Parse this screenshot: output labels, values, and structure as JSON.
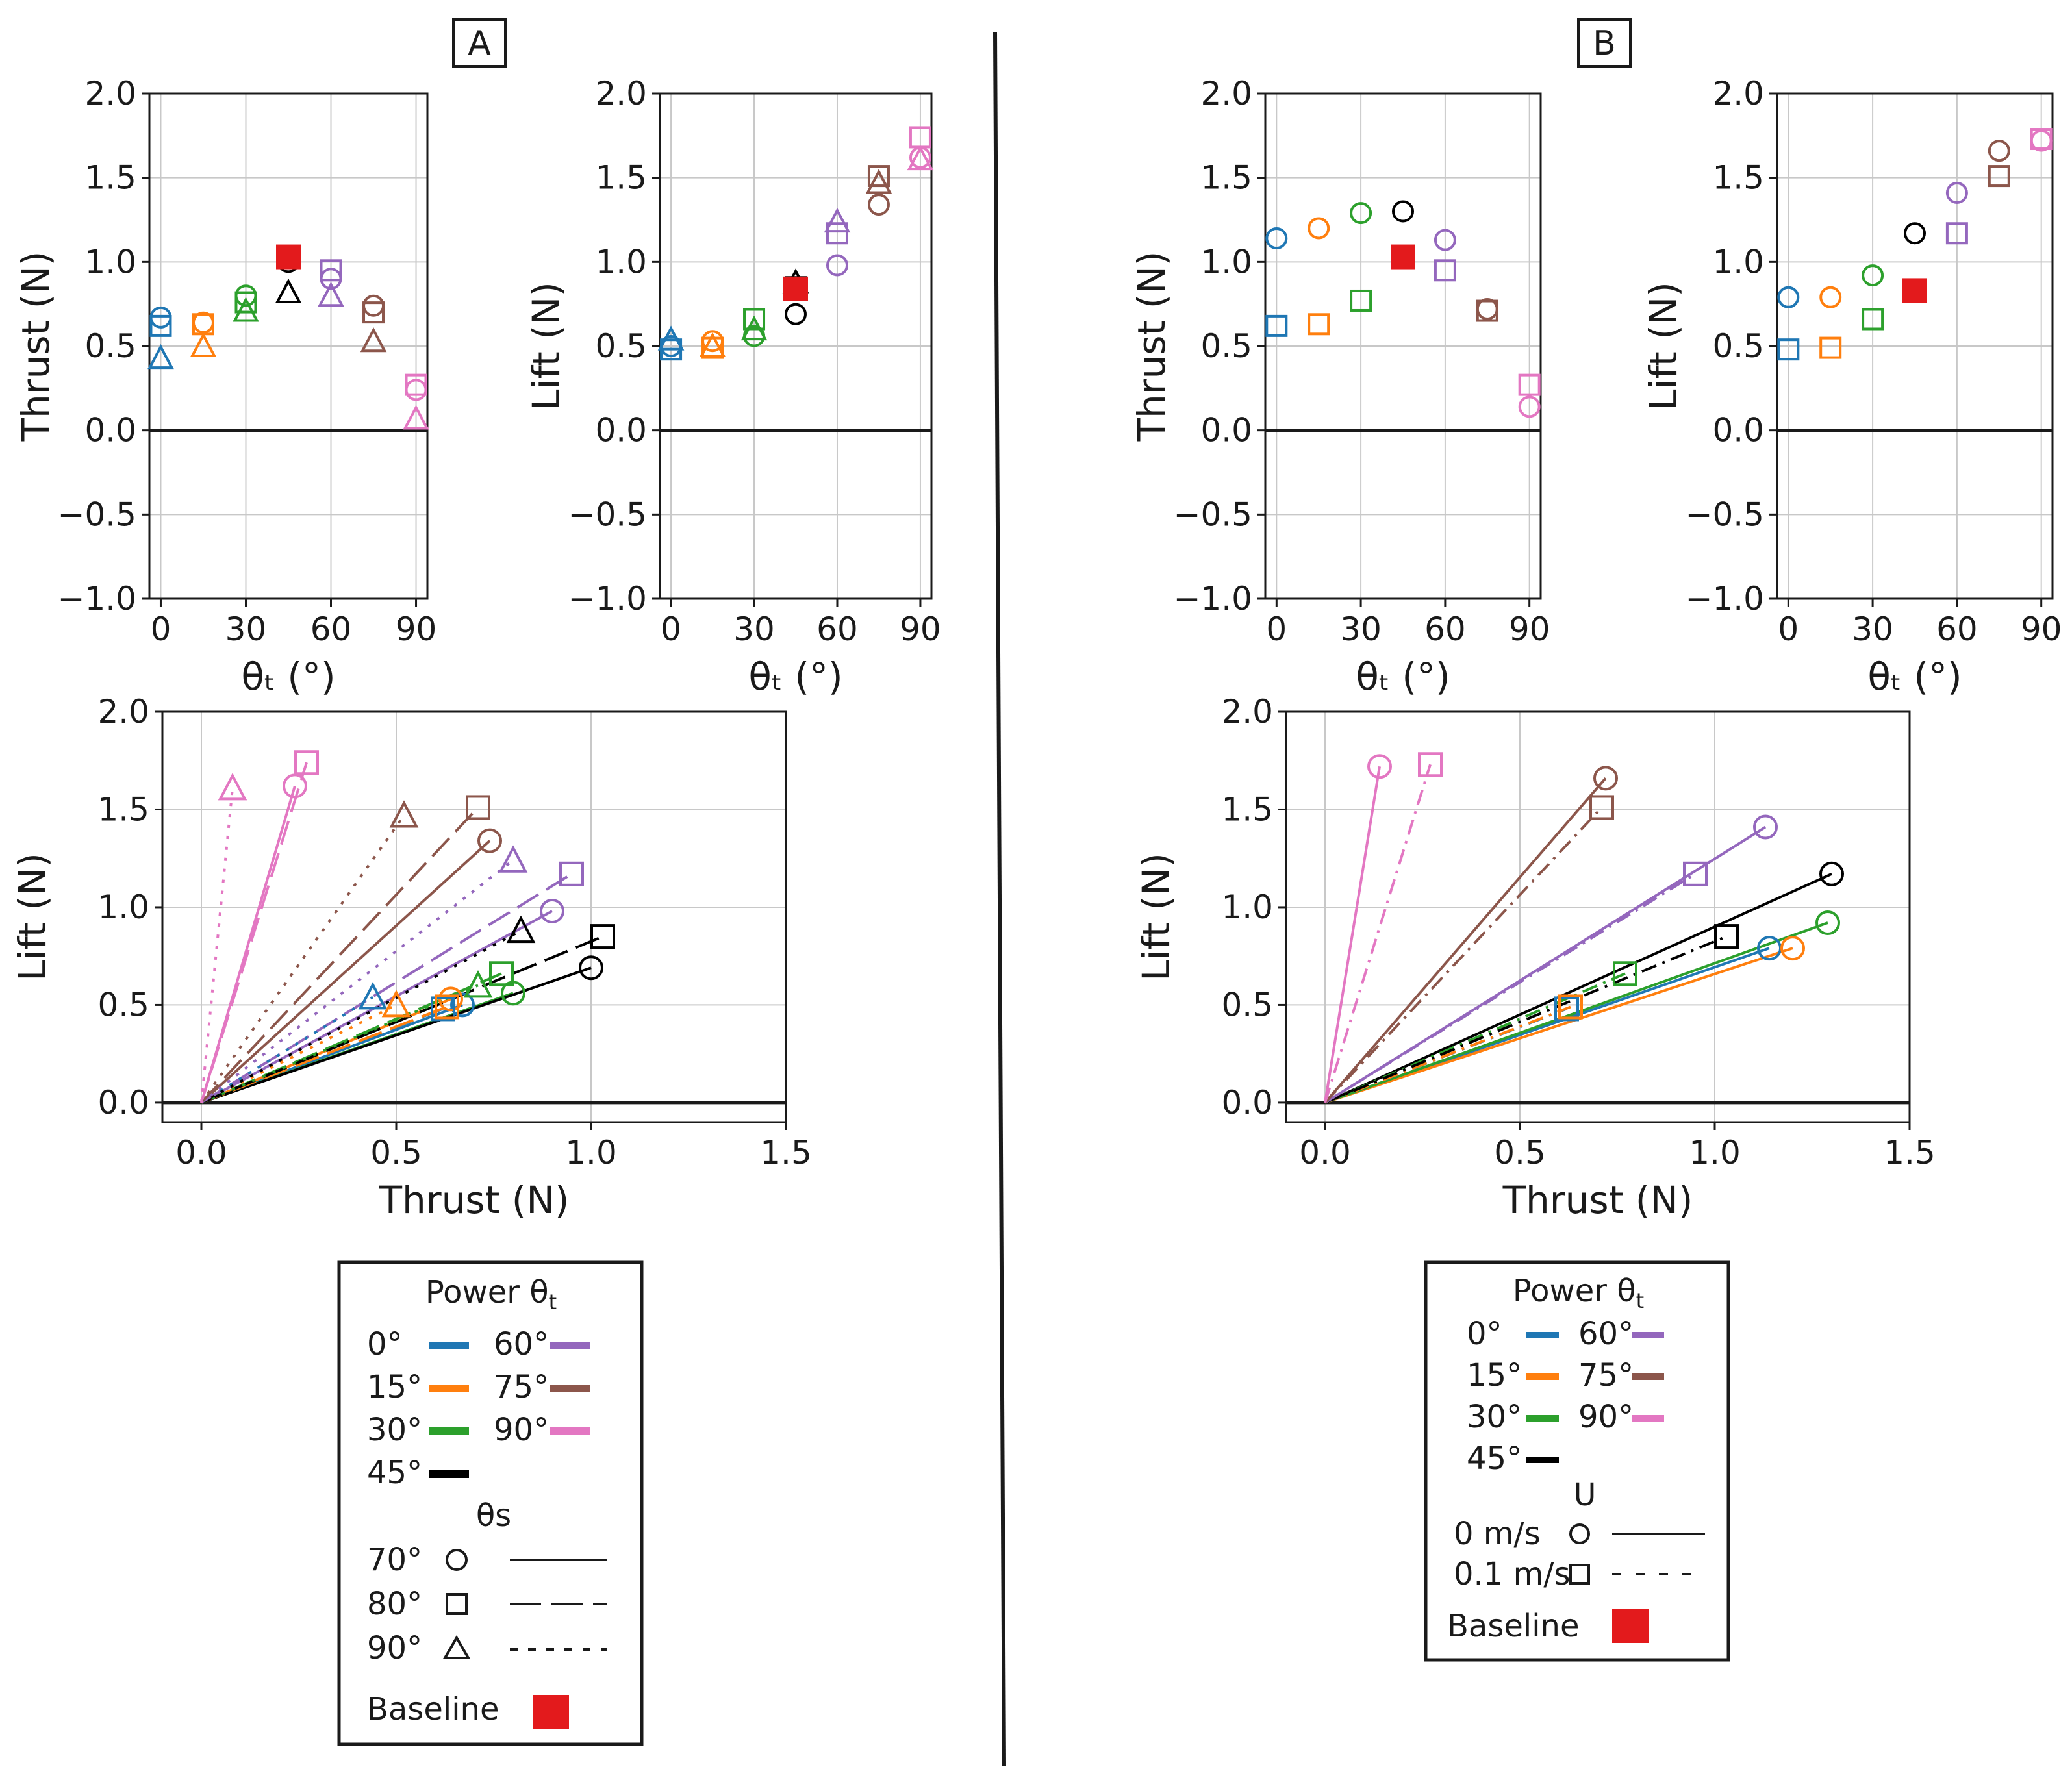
{
  "colors": {
    "p0": "#1f77b4",
    "p15": "#ff7f0e",
    "p30": "#2ca02c",
    "p45": "#000000",
    "p60": "#9467bd",
    "p75": "#8c564b",
    "p90": "#e377c2",
    "baseline": "#e31a1c"
  },
  "panel_labels": {
    "a": "A",
    "b": "B"
  },
  "legend_a": {
    "title": "Power θ",
    "title_sub": "t",
    "powers": [
      {
        "label": "0°",
        "color": "#1f77b4"
      },
      {
        "label": "15°",
        "color": "#ff7f0e"
      },
      {
        "label": "30°",
        "color": "#2ca02c"
      },
      {
        "label": "45°",
        "color": "#000000"
      },
      {
        "label": "60°",
        "color": "#9467bd"
      },
      {
        "label": "75°",
        "color": "#8c564b"
      },
      {
        "label": "90°",
        "color": "#e377c2"
      }
    ],
    "section2_title": "θs",
    "styles": [
      {
        "label": "70°",
        "marker": "circle",
        "line": "solid"
      },
      {
        "label": "80°",
        "marker": "square",
        "line": "dashed"
      },
      {
        "label": "90°",
        "marker": "triangle",
        "line": "dotted"
      }
    ],
    "baseline_label": "Baseline"
  },
  "legend_b": {
    "title": "Power θ",
    "title_sub": "t",
    "powers": [
      {
        "label": "0°",
        "color": "#1f77b4"
      },
      {
        "label": "15°",
        "color": "#ff7f0e"
      },
      {
        "label": "30°",
        "color": "#2ca02c"
      },
      {
        "label": "45°",
        "color": "#000000"
      },
      {
        "label": "60°",
        "color": "#9467bd"
      },
      {
        "label": "75°",
        "color": "#8c564b"
      },
      {
        "label": "90°",
        "color": "#e377c2"
      }
    ],
    "section2_title": "U",
    "styles": [
      {
        "label": "0 m/s",
        "marker": "circle",
        "line": "solid"
      },
      {
        "label": "0.1 m/s",
        "marker": "square",
        "line": "dashdot"
      }
    ],
    "baseline_label": "Baseline"
  },
  "chart_data": [
    {
      "id": "A-thrust",
      "panel": "A",
      "type": "scatter",
      "xlabel": "θₜ (°)",
      "ylabel": "Thrust (N)",
      "xlim": [
        -4,
        94
      ],
      "ylim": [
        -1.0,
        2.0
      ],
      "xticks": [
        0,
        30,
        60,
        90
      ],
      "yticks": [
        -1.0,
        -0.5,
        0.0,
        0.5,
        1.0,
        1.5,
        2.0
      ],
      "series": [
        {
          "name": "θs 70°",
          "marker": "circle",
          "points": [
            [
              0,
              0.67,
              "p0"
            ],
            [
              15,
              0.64,
              "p15"
            ],
            [
              30,
              0.8,
              "p30"
            ],
            [
              45,
              1.0,
              "p45"
            ],
            [
              60,
              0.9,
              "p60"
            ],
            [
              75,
              0.74,
              "p75"
            ],
            [
              90,
              0.24,
              "p90"
            ]
          ]
        },
        {
          "name": "θs 80°",
          "marker": "square",
          "points": [
            [
              0,
              0.62,
              "p0"
            ],
            [
              15,
              0.63,
              "p15"
            ],
            [
              30,
              0.76,
              "p30"
            ],
            [
              60,
              0.95,
              "p60"
            ],
            [
              75,
              0.7,
              "p75"
            ],
            [
              90,
              0.27,
              "p90"
            ]
          ]
        },
        {
          "name": "θs 90°",
          "marker": "triangle",
          "points": [
            [
              0,
              0.43,
              "p0"
            ],
            [
              15,
              0.5,
              "p15"
            ],
            [
              30,
              0.71,
              "p30"
            ],
            [
              45,
              0.82,
              "p45"
            ],
            [
              60,
              0.8,
              "p60"
            ],
            [
              75,
              0.53,
              "p75"
            ],
            [
              90,
              0.07,
              "p90"
            ]
          ]
        },
        {
          "name": "Baseline",
          "marker": "filled-square",
          "points": [
            [
              45,
              1.03,
              "baseline"
            ]
          ]
        }
      ]
    },
    {
      "id": "A-lift",
      "panel": "A",
      "type": "scatter",
      "xlabel": "θₜ (°)",
      "ylabel": "Lift (N)",
      "xlim": [
        -4,
        94
      ],
      "ylim": [
        -1.0,
        2.0
      ],
      "xticks": [
        0,
        30,
        60,
        90
      ],
      "yticks": [
        -1.0,
        -0.5,
        0.0,
        0.5,
        1.0,
        1.5,
        2.0
      ],
      "series": [
        {
          "name": "θs 70°",
          "marker": "circle",
          "points": [
            [
              0,
              0.5,
              "p0"
            ],
            [
              15,
              0.53,
              "p15"
            ],
            [
              30,
              0.56,
              "p30"
            ],
            [
              45,
              0.69,
              "p45"
            ],
            [
              60,
              0.98,
              "p60"
            ],
            [
              75,
              1.34,
              "p75"
            ],
            [
              90,
              1.62,
              "p90"
            ]
          ]
        },
        {
          "name": "θs 80°",
          "marker": "square",
          "points": [
            [
              0,
              0.48,
              "p0"
            ],
            [
              15,
              0.49,
              "p15"
            ],
            [
              30,
              0.66,
              "p30"
            ],
            [
              45,
              0.85,
              "p45"
            ],
            [
              60,
              1.17,
              "p60"
            ],
            [
              75,
              1.51,
              "p75"
            ],
            [
              90,
              1.74,
              "p90"
            ]
          ]
        },
        {
          "name": "θs 90°",
          "marker": "triangle",
          "points": [
            [
              0,
              0.54,
              "p0"
            ],
            [
              15,
              0.5,
              "p15"
            ],
            [
              30,
              0.6,
              "p30"
            ],
            [
              45,
              0.88,
              "p45"
            ],
            [
              60,
              1.24,
              "p60"
            ],
            [
              75,
              1.47,
              "p75"
            ],
            [
              90,
              1.61,
              "p90"
            ]
          ]
        },
        {
          "name": "Baseline",
          "marker": "filled-square",
          "points": [
            [
              45,
              0.84,
              "baseline"
            ]
          ]
        }
      ]
    },
    {
      "id": "A-lift-vs-thrust",
      "panel": "A",
      "type": "line",
      "xlabel": "Thrust (N)",
      "ylabel": "Lift (N)",
      "xlim": [
        -0.1,
        1.5
      ],
      "ylim": [
        -0.1,
        2.0
      ],
      "xticks": [
        0.0,
        0.5,
        1.0,
        1.5
      ],
      "yticks": [
        0.0,
        0.5,
        1.0,
        1.5,
        2.0
      ],
      "series": [
        {
          "name": "70°",
          "marker": "circle",
          "line": "solid",
          "points": [
            [
              0.67,
              0.5,
              "p0"
            ],
            [
              0.64,
              0.53,
              "p15"
            ],
            [
              0.8,
              0.56,
              "p30"
            ],
            [
              1.0,
              0.69,
              "p45"
            ],
            [
              0.9,
              0.98,
              "p60"
            ],
            [
              0.74,
              1.34,
              "p75"
            ],
            [
              0.24,
              1.62,
              "p90"
            ]
          ]
        },
        {
          "name": "80°",
          "marker": "square",
          "line": "dashed",
          "points": [
            [
              0.62,
              0.48,
              "p0"
            ],
            [
              0.63,
              0.49,
              "p15"
            ],
            [
              0.77,
              0.66,
              "p30"
            ],
            [
              1.03,
              0.85,
              "p45"
            ],
            [
              0.95,
              1.17,
              "p60"
            ],
            [
              0.71,
              1.51,
              "p75"
            ],
            [
              0.27,
              1.74,
              "p90"
            ]
          ]
        },
        {
          "name": "90°",
          "marker": "triangle",
          "line": "dotted",
          "points": [
            [
              0.44,
              0.54,
              "p0"
            ],
            [
              0.5,
              0.5,
              "p15"
            ],
            [
              0.71,
              0.6,
              "p30"
            ],
            [
              0.82,
              0.88,
              "p45"
            ],
            [
              0.8,
              1.24,
              "p60"
            ],
            [
              0.52,
              1.47,
              "p75"
            ],
            [
              0.08,
              1.61,
              "p90"
            ]
          ]
        }
      ]
    },
    {
      "id": "B-thrust",
      "panel": "B",
      "type": "scatter",
      "xlabel": "θₜ (°)",
      "ylabel": "Thrust (N)",
      "xlim": [
        -4,
        94
      ],
      "ylim": [
        -1.0,
        2.0
      ],
      "xticks": [
        0,
        30,
        60,
        90
      ],
      "yticks": [
        -1.0,
        -0.5,
        0.0,
        0.5,
        1.0,
        1.5,
        2.0
      ],
      "series": [
        {
          "name": "U 0 m/s",
          "marker": "circle",
          "points": [
            [
              0,
              1.14,
              "p0"
            ],
            [
              15,
              1.2,
              "p15"
            ],
            [
              30,
              1.29,
              "p30"
            ],
            [
              45,
              1.3,
              "p45"
            ],
            [
              60,
              1.13,
              "p60"
            ],
            [
              75,
              0.72,
              "p75"
            ],
            [
              90,
              0.14,
              "p90"
            ]
          ]
        },
        {
          "name": "U 0.1 m/s",
          "marker": "square",
          "points": [
            [
              0,
              0.62,
              "p0"
            ],
            [
              15,
              0.63,
              "p15"
            ],
            [
              30,
              0.77,
              "p30"
            ],
            [
              60,
              0.95,
              "p60"
            ],
            [
              75,
              0.71,
              "p75"
            ],
            [
              90,
              0.27,
              "p90"
            ]
          ]
        },
        {
          "name": "Baseline",
          "marker": "filled-square",
          "points": [
            [
              45,
              1.03,
              "baseline"
            ]
          ]
        }
      ]
    },
    {
      "id": "B-lift",
      "panel": "B",
      "type": "scatter",
      "xlabel": "θₜ (°)",
      "ylabel": "Lift (N)",
      "xlim": [
        -4,
        94
      ],
      "ylim": [
        -1.0,
        2.0
      ],
      "xticks": [
        0,
        30,
        60,
        90
      ],
      "yticks": [
        -1.0,
        -0.5,
        0.0,
        0.5,
        1.0,
        1.5,
        2.0
      ],
      "series": [
        {
          "name": "U 0 m/s",
          "marker": "circle",
          "points": [
            [
              0,
              0.79,
              "p0"
            ],
            [
              15,
              0.79,
              "p15"
            ],
            [
              30,
              0.92,
              "p30"
            ],
            [
              45,
              1.17,
              "p45"
            ],
            [
              60,
              1.41,
              "p60"
            ],
            [
              75,
              1.66,
              "p75"
            ],
            [
              90,
              1.72,
              "p90"
            ]
          ]
        },
        {
          "name": "U 0.1 m/s",
          "marker": "square",
          "points": [
            [
              0,
              0.48,
              "p0"
            ],
            [
              15,
              0.49,
              "p15"
            ],
            [
              30,
              0.66,
              "p30"
            ],
            [
              60,
              1.17,
              "p60"
            ],
            [
              75,
              1.51,
              "p75"
            ],
            [
              90,
              1.73,
              "p90"
            ]
          ]
        },
        {
          "name": "Baseline",
          "marker": "filled-square",
          "points": [
            [
              45,
              0.83,
              "baseline"
            ]
          ]
        }
      ]
    },
    {
      "id": "B-lift-vs-thrust",
      "panel": "B",
      "type": "line",
      "xlabel": "Thrust (N)",
      "ylabel": "Lift (N)",
      "xlim": [
        -0.1,
        1.5
      ],
      "ylim": [
        -0.1,
        2.0
      ],
      "xticks": [
        0.0,
        0.5,
        1.0,
        1.5
      ],
      "yticks": [
        0.0,
        0.5,
        1.0,
        1.5,
        2.0
      ],
      "series": [
        {
          "name": "0 m/s",
          "marker": "circle",
          "line": "solid",
          "points": [
            [
              1.14,
              0.79,
              "p0"
            ],
            [
              1.2,
              0.79,
              "p15"
            ],
            [
              1.29,
              0.92,
              "p30"
            ],
            [
              1.3,
              1.17,
              "p45"
            ],
            [
              1.13,
              1.41,
              "p60"
            ],
            [
              0.72,
              1.66,
              "p75"
            ],
            [
              0.14,
              1.72,
              "p90"
            ]
          ]
        },
        {
          "name": "0.1 m/s",
          "marker": "square",
          "line": "dashdot",
          "points": [
            [
              0.62,
              0.48,
              "p0"
            ],
            [
              0.63,
              0.49,
              "p15"
            ],
            [
              0.77,
              0.66,
              "p30"
            ],
            [
              1.03,
              0.85,
              "p45"
            ],
            [
              0.95,
              1.17,
              "p60"
            ],
            [
              0.71,
              1.51,
              "p75"
            ],
            [
              0.27,
              1.73,
              "p90"
            ]
          ]
        }
      ]
    }
  ]
}
